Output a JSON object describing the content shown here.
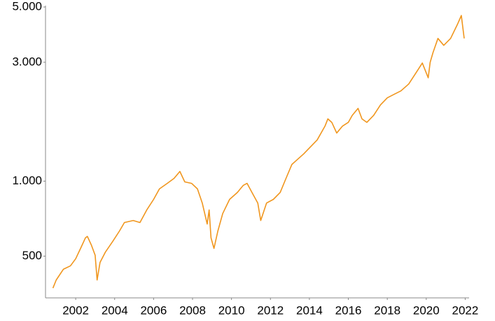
{
  "chart_data": {
    "type": "line",
    "color": "#f0961e",
    "log_scale": true,
    "grid": false,
    "x": [
      2000.83,
      2001.0,
      2001.37,
      2001.73,
      2002.0,
      2002.25,
      2002.5,
      2002.6,
      2002.8,
      2003.0,
      2003.1,
      2003.25,
      2003.53,
      2003.9,
      2004.25,
      2004.5,
      2004.95,
      2005.3,
      2005.65,
      2006.0,
      2006.3,
      2006.7,
      2007.05,
      2007.35,
      2007.6,
      2007.95,
      2008.25,
      2008.5,
      2008.75,
      2008.85,
      2008.95,
      2009.1,
      2009.3,
      2009.55,
      2009.9,
      2010.3,
      2010.6,
      2010.8,
      2011.05,
      2011.35,
      2011.5,
      2011.8,
      2012.15,
      2012.5,
      2012.8,
      2013.1,
      2013.3,
      2013.7,
      2014.05,
      2014.4,
      2014.8,
      2014.95,
      2015.15,
      2015.4,
      2015.7,
      2016.0,
      2016.2,
      2016.5,
      2016.7,
      2016.95,
      2017.3,
      2017.65,
      2018.0,
      2018.35,
      2018.7,
      2019.1,
      2019.45,
      2019.8,
      2020.1,
      2020.2,
      2020.35,
      2020.6,
      2020.9,
      2021.25,
      2021.6,
      2021.8,
      2021.95
    ],
    "values": [
      372,
      401,
      443,
      457,
      488,
      537,
      592,
      600,
      555,
      504,
      401,
      472,
      520,
      573,
      631,
      682,
      695,
      682,
      766,
      845,
      931,
      980,
      1026,
      1094,
      993,
      980,
      931,
      817,
      673,
      766,
      592,
      537,
      631,
      741,
      845,
      901,
      961,
      980,
      901,
      817,
      695,
      817,
      845,
      901,
      1026,
      1167,
      1205,
      1285,
      1371,
      1463,
      1663,
      1778,
      1722,
      1560,
      1663,
      1722,
      1837,
      1960,
      1778,
      1722,
      1837,
      2023,
      2159,
      2230,
      2303,
      2455,
      2704,
      2979,
      2600,
      3000,
      3283,
      3740,
      3508,
      3740,
      4256,
      4624,
      3740
    ],
    "xlim": [
      2000.45,
      2022.2
    ],
    "xticks": [
      2002,
      2004,
      2006,
      2008,
      2010,
      2012,
      2014,
      2016,
      2018,
      2020,
      2022
    ],
    "ylim": [
      340,
      5000
    ],
    "yticks": [
      {
        "value": 500,
        "label": "500"
      },
      {
        "value": 1000,
        "label": "1.000"
      },
      {
        "value": 3000,
        "label": "3.000"
      },
      {
        "value": 5000,
        "label": "5.000"
      }
    ]
  }
}
